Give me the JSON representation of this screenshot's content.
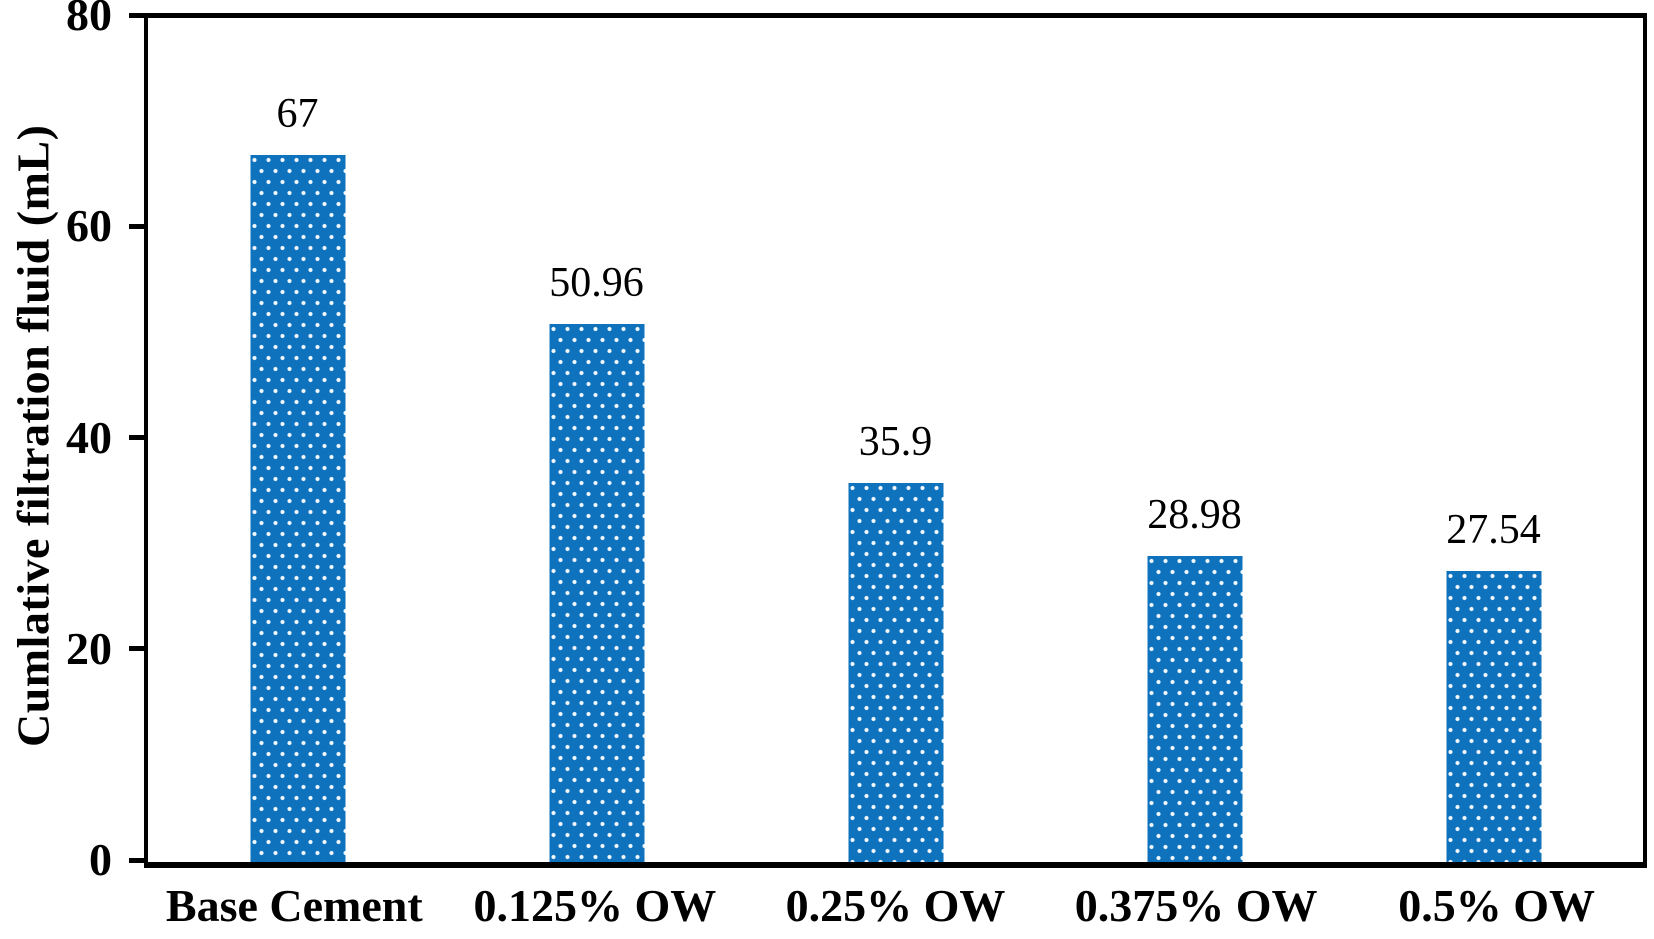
{
  "chart_data": {
    "type": "bar",
    "title": "",
    "xlabel": "",
    "ylabel": "Cumlative filtration fluid (mL)",
    "categories": [
      "Base Cement",
      "0.125% OW",
      "0.25% OW",
      "0.375% OW",
      "0.5% OW"
    ],
    "values": [
      67,
      50.96,
      35.9,
      28.98,
      27.54
    ],
    "value_labels": [
      "67",
      "50.96",
      "35.9",
      "28.98",
      "27.54"
    ],
    "ylim": [
      0,
      80
    ],
    "yticks": [
      0,
      20,
      40,
      60,
      80
    ],
    "grid": false,
    "legend": null,
    "bar_color": "#0F72BD",
    "bar_pattern": "white-dots",
    "axis_color": "#000000",
    "text_color": "#000000",
    "background_color": "#ffffff"
  }
}
